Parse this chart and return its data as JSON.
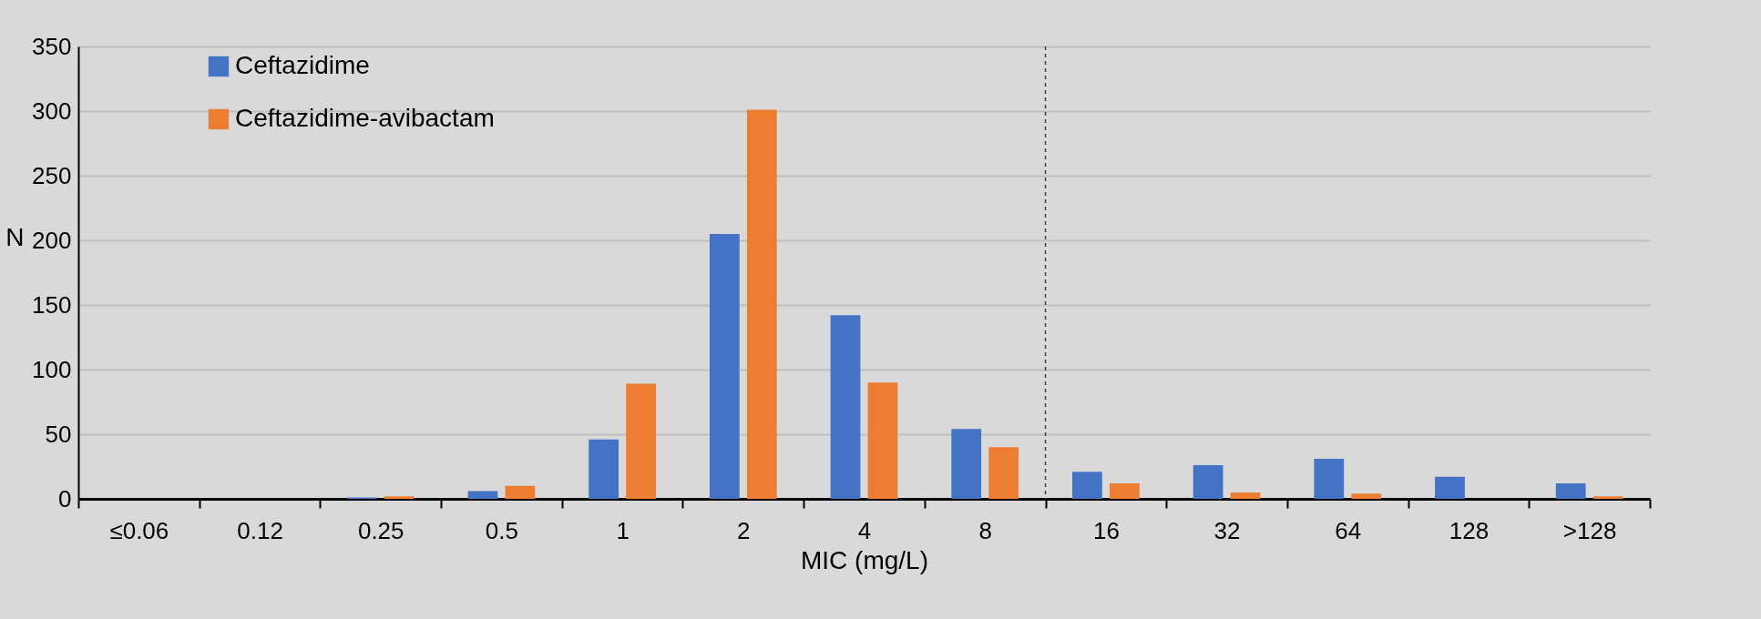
{
  "chart_data": {
    "type": "bar",
    "xlabel": "MIC (mg/L)",
    "ylabel": "N",
    "categories": [
      "≤0.06",
      "0.12",
      "0.25",
      "0.5",
      "1",
      "2",
      "4",
      "8",
      "16",
      "32",
      "64",
      "128",
      ">128"
    ],
    "series": [
      {
        "name": "Ceftazidime",
        "color": "#4472c4",
        "values": [
          0,
          0,
          1,
          6,
          46,
          205,
          142,
          54,
          21,
          26,
          31,
          17,
          12
        ]
      },
      {
        "name": "Ceftazidime-avibactam",
        "color": "#ed7d31",
        "values": [
          0,
          0,
          2,
          10,
          89,
          301,
          90,
          40,
          12,
          5,
          4,
          0,
          2
        ]
      }
    ],
    "ylim": [
      0,
      350
    ],
    "yticks": [
      0,
      50,
      100,
      150,
      200,
      250,
      300,
      350
    ],
    "grid": "y",
    "legend": "top left",
    "ref_lines": [
      {
        "axis": "x",
        "value": "8",
        "color": "#404040",
        "line_style": "dashed"
      }
    ]
  }
}
